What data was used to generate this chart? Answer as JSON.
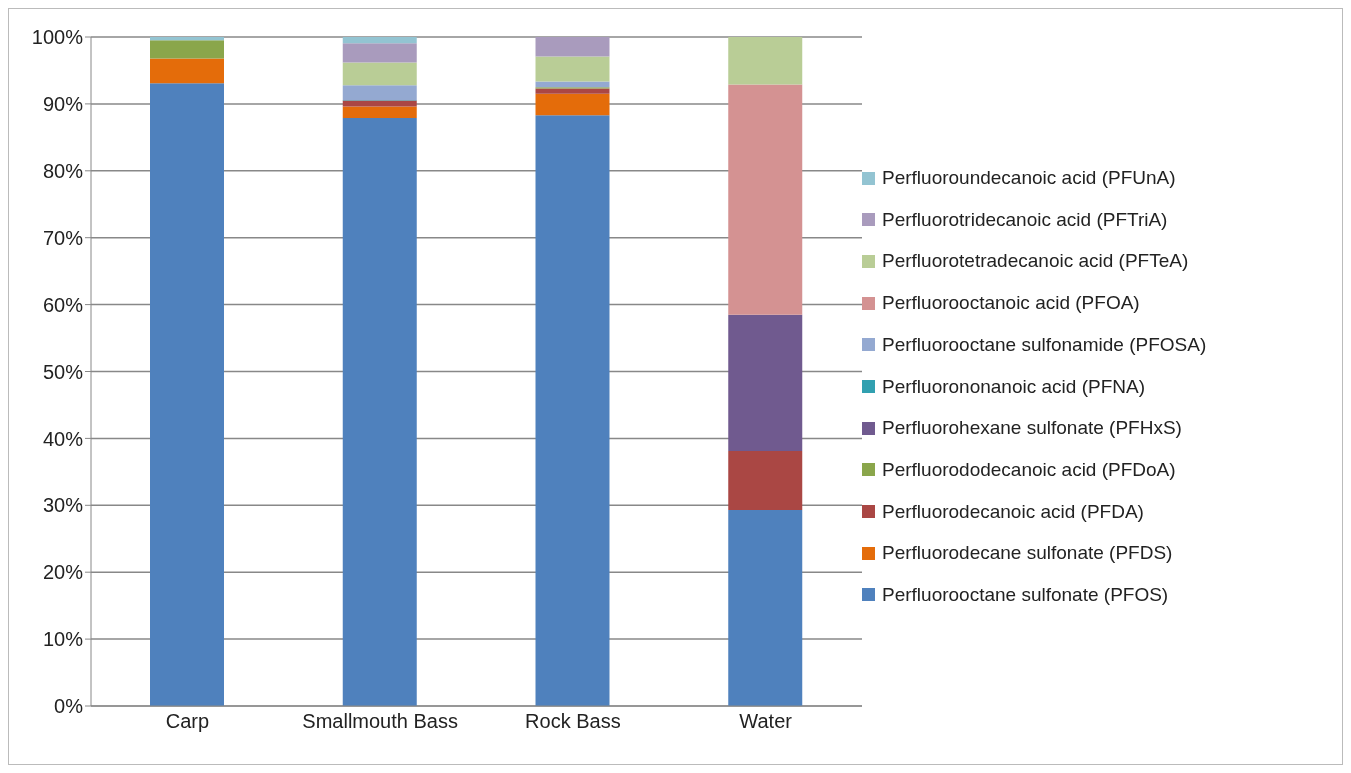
{
  "chart_data": {
    "type": "bar",
    "stacked": true,
    "categories": [
      "Carp",
      "Smallmouth Bass",
      "Rock Bass",
      "Water"
    ],
    "series": [
      {
        "name": "Perfluorooctane sulfonate (PFOS)",
        "color": "#4f81bd",
        "values": [
          93.1,
          87.9,
          88.3,
          29.3
        ]
      },
      {
        "name": "Perfluorodecane sulfonate (PFDS)",
        "color": "#e46c0a",
        "values": [
          3.7,
          1.7,
          3.2,
          0
        ]
      },
      {
        "name": "Perfluorodecanoic acid (PFDA)",
        "color": "#aa4744",
        "values": [
          0,
          0.9,
          0.8,
          8.8
        ]
      },
      {
        "name": "Perfluorododecanoic acid (PFDoA)",
        "color": "#8aa64b",
        "values": [
          2.7,
          0,
          0.2,
          0
        ]
      },
      {
        "name": "Perfluorohexane sulfonate (PFHxS)",
        "color": "#705a8f",
        "values": [
          0,
          0,
          0,
          20.4
        ]
      },
      {
        "name": "Perfluorononanoic acid (PFNA)",
        "color": "#31a0b0",
        "values": [
          0,
          0.1,
          0,
          0
        ]
      },
      {
        "name": "Perfluorooctane sulfonamide (PFOSA)",
        "color": "#94a9d1",
        "values": [
          0,
          2.2,
          0.85,
          0
        ]
      },
      {
        "name": "Perfluorooctanoic acid (PFOA)",
        "color": "#d49292",
        "values": [
          0,
          0,
          0,
          34.4
        ]
      },
      {
        "name": "Perfluorotetradecanoic acid (PFTeA)",
        "color": "#b9cd96",
        "values": [
          0,
          3.4,
          3.75,
          7.1
        ]
      },
      {
        "name": "Perfluorotridecanoic acid (PFTriA)",
        "color": "#a99bbd",
        "values": [
          0,
          2.85,
          2.9,
          0
        ]
      },
      {
        "name": "Perfluoroundecanoic acid (PFUnA)",
        "color": "#93c4d2",
        "values": [
          0.5,
          0.95,
          0,
          0
        ]
      }
    ],
    "ylim": [
      0,
      100
    ],
    "yticks": [
      {
        "value": 0,
        "label": "0%"
      },
      {
        "value": 10,
        "label": "10%"
      },
      {
        "value": 20,
        "label": "20%"
      },
      {
        "value": 30,
        "label": "30%"
      },
      {
        "value": 40,
        "label": "40%"
      },
      {
        "value": 50,
        "label": "50%"
      },
      {
        "value": 60,
        "label": "60%"
      },
      {
        "value": 70,
        "label": "70%"
      },
      {
        "value": 80,
        "label": "80%"
      },
      {
        "value": 90,
        "label": "90%"
      },
      {
        "value": 100,
        "label": "100%"
      }
    ],
    "grid": "y",
    "legend": "right"
  }
}
